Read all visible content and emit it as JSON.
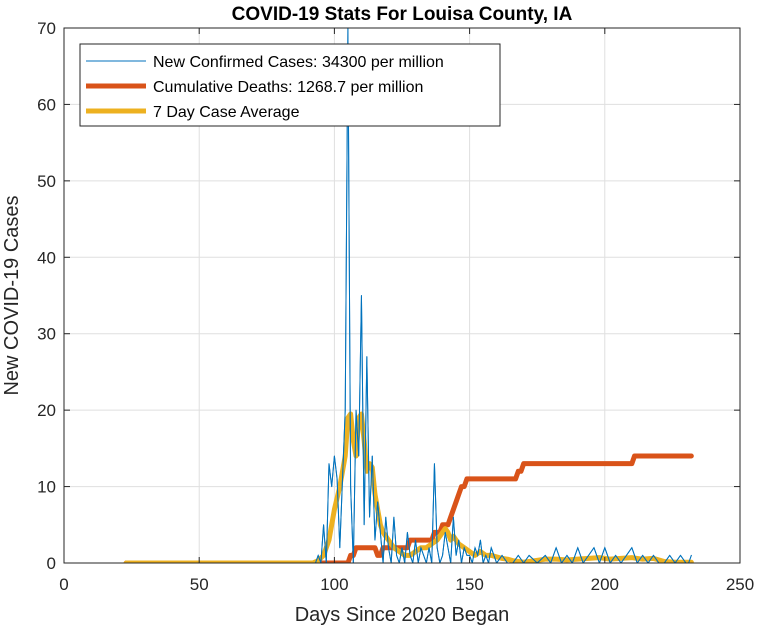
{
  "chart_data": {
    "type": "line",
    "title": "COVID-19 Stats For Louisa County, IA",
    "xlabel": "Days Since 2020 Began",
    "ylabel": "New COVID-19 Cases",
    "xlim": [
      0,
      250
    ],
    "ylim": [
      0,
      70
    ],
    "xticks": [
      0,
      50,
      100,
      150,
      200,
      250
    ],
    "yticks": [
      0,
      10,
      20,
      30,
      40,
      50,
      60,
      70
    ],
    "grid": true,
    "legend_position": "top-left",
    "series": [
      {
        "name": "New Confirmed Cases: 34300 per million",
        "color": "#0072BD",
        "style": "thin",
        "x": [
          23,
          92,
          93,
          94,
          95,
          96,
          97,
          98,
          99,
          100,
          101,
          102,
          103,
          104,
          105,
          106,
          107,
          108,
          109,
          110,
          111,
          112,
          113,
          114,
          115,
          116,
          117,
          118,
          119,
          120,
          121,
          122,
          123,
          124,
          125,
          126,
          127,
          128,
          129,
          130,
          131,
          132,
          133,
          134,
          135,
          136,
          137,
          138,
          139,
          140,
          141,
          142,
          143,
          144,
          145,
          146,
          147,
          148,
          149,
          150,
          151,
          152,
          153,
          154,
          155,
          156,
          157,
          158,
          159,
          160,
          162,
          164,
          166,
          168,
          170,
          172,
          175,
          178,
          180,
          182,
          184,
          186,
          188,
          190,
          192,
          194,
          196,
          198,
          200,
          202,
          204,
          206,
          208,
          210,
          212,
          214,
          216,
          218,
          220,
          222,
          224,
          226,
          228,
          230,
          231,
          232
        ],
        "y": [
          0,
          0,
          0,
          1,
          0,
          5,
          0,
          13,
          10,
          14,
          11,
          2,
          11,
          20,
          70,
          10,
          0,
          20,
          14,
          35,
          5,
          27,
          6,
          14,
          3,
          8,
          4,
          0,
          6,
          2,
          0,
          6,
          1,
          0,
          2,
          0,
          4,
          1,
          0,
          3,
          0,
          2,
          1,
          0,
          2,
          0,
          13,
          2,
          0,
          1,
          4,
          2,
          0,
          6,
          1,
          3,
          0,
          2,
          1,
          1,
          0,
          2,
          1,
          3,
          0,
          1,
          0,
          2,
          1,
          0,
          1,
          0,
          0,
          1,
          0,
          1,
          0,
          1,
          0,
          2,
          0,
          1,
          0,
          2,
          0,
          1,
          2,
          0,
          2,
          0,
          1,
          0,
          1,
          2,
          0,
          1,
          0,
          1,
          0,
          0,
          1,
          0,
          1,
          0,
          0,
          1
        ]
      },
      {
        "name": "Cumulative Deaths: 1268.7 per million",
        "color": "#D95319",
        "style": "thick",
        "x": [
          23,
          100,
          101,
          102,
          103,
          104,
          105,
          106,
          107,
          108,
          114,
          115,
          116,
          117,
          118,
          119,
          120,
          121,
          122,
          123,
          124,
          125,
          126,
          127,
          128,
          129,
          130,
          132,
          134,
          135,
          136,
          137,
          138,
          139,
          140,
          141,
          142,
          143,
          144,
          145,
          146,
          147,
          148,
          149,
          150,
          151,
          152,
          167,
          168,
          169,
          170,
          171,
          208,
          209,
          210,
          211,
          212,
          232
        ],
        "y": [
          0,
          0,
          0,
          0,
          0,
          0,
          0,
          1,
          1,
          2,
          2,
          2,
          1,
          1,
          2,
          2,
          2,
          2,
          2,
          2,
          2,
          2,
          2,
          2,
          3,
          3,
          3,
          3,
          3,
          3,
          3,
          4,
          4,
          4,
          5,
          5,
          5,
          6,
          7,
          8,
          9,
          10,
          10,
          11,
          11,
          11,
          11,
          11,
          12,
          12,
          13,
          13,
          13,
          13,
          13,
          14,
          14,
          14
        ]
      },
      {
        "name": "7 Day Case Average",
        "color": "#EDB120",
        "style": "thick",
        "x": [
          23,
          92,
          94,
          96,
          98,
          100,
          102,
          104,
          105,
          106,
          107,
          108,
          109,
          110,
          111,
          112,
          113,
          114,
          115,
          116,
          117,
          118,
          119,
          120,
          122,
          124,
          126,
          128,
          130,
          132,
          134,
          136,
          138,
          140,
          141,
          142,
          143,
          144,
          145,
          146,
          148,
          150,
          152,
          154,
          156,
          158,
          160,
          162,
          164,
          166,
          168,
          170,
          174,
          178,
          182,
          186,
          190,
          194,
          198,
          202,
          206,
          210,
          214,
          218,
          222,
          226,
          230,
          232
        ],
        "y": [
          0,
          0,
          0.3,
          1,
          3,
          7,
          10,
          14,
          19,
          19.5,
          16,
          14,
          19,
          19.5,
          16,
          12,
          13,
          12.5,
          9,
          7,
          5,
          4,
          3.5,
          3,
          2,
          1.5,
          1,
          1,
          1.5,
          2,
          2,
          2.5,
          3,
          4,
          4.5,
          4,
          3,
          3.5,
          3,
          2.5,
          2,
          1.5,
          1,
          1.5,
          1,
          1,
          0.8,
          0.6,
          0.5,
          0.3,
          0.2,
          0.1,
          0.3,
          0.5,
          0.5,
          0.4,
          0.5,
          0.6,
          0.7,
          0.5,
          0.6,
          0.7,
          0.5,
          0.6,
          0.2,
          0.1,
          0.1,
          0.1
        ]
      }
    ]
  }
}
